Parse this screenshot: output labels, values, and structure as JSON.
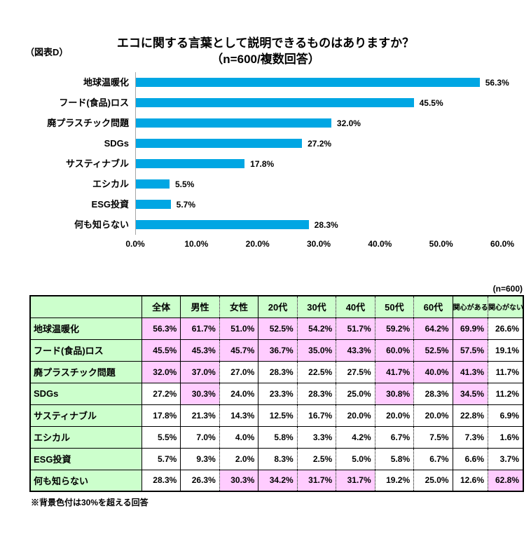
{
  "figure_label": "（図表D）",
  "chart_data": {
    "type": "bar",
    "orientation": "horizontal",
    "title": "エコに関する言葉として説明できるものはありますか？",
    "subtitle": "（n=600/複数回答）",
    "categories": [
      "地球温暖化",
      "フード(食品)ロス",
      "廃プラスチック問題",
      "SDGs",
      "サスティナブル",
      "エシカル",
      "ESG投資",
      "何も知らない"
    ],
    "values": [
      56.3,
      45.5,
      32.0,
      27.2,
      17.8,
      5.5,
      5.7,
      28.3
    ],
    "value_labels": [
      "56.3%",
      "45.5%",
      "32.0%",
      "27.2%",
      "17.8%",
      "5.5%",
      "5.7%",
      "28.3%"
    ],
    "xlabel": "",
    "ylabel": "",
    "xlim": [
      0,
      60
    ],
    "x_ticks": [
      "0.0%",
      "10.0%",
      "20.0%",
      "30.0%",
      "40.0%",
      "50.0%",
      "60.0%"
    ],
    "grid": false,
    "legend": false,
    "bar_color": "#00A6E3",
    "axis_line_color": "#A6A6A6"
  },
  "table": {
    "sample_size_label": "(n=600)",
    "columns": [
      "全体",
      "男性",
      "女性",
      "20代",
      "30代",
      "40代",
      "50代",
      "60代",
      "関心がある",
      "関心がない"
    ],
    "rows": [
      {
        "label": "地球温暖化",
        "values": [
          56.3,
          61.7,
          51.0,
          52.5,
          54.2,
          51.7,
          59.2,
          64.2,
          69.9,
          26.6
        ]
      },
      {
        "label": "フード(食品)ロス",
        "values": [
          45.5,
          45.3,
          45.7,
          36.7,
          35.0,
          43.3,
          60.0,
          52.5,
          57.5,
          19.1
        ]
      },
      {
        "label": "廃プラスチック問題",
        "values": [
          32.0,
          37.0,
          27.0,
          28.3,
          22.5,
          27.5,
          41.7,
          40.0,
          41.3,
          11.7
        ]
      },
      {
        "label": "SDGs",
        "values": [
          27.2,
          30.3,
          24.0,
          23.3,
          28.3,
          25.0,
          30.8,
          28.3,
          34.5,
          11.2
        ]
      },
      {
        "label": "サスティナブル",
        "values": [
          17.8,
          21.3,
          14.3,
          12.5,
          16.7,
          20.0,
          20.0,
          20.0,
          22.8,
          6.9
        ]
      },
      {
        "label": "エシカル",
        "values": [
          5.5,
          7.0,
          4.0,
          5.8,
          3.3,
          4.2,
          6.7,
          7.5,
          7.3,
          1.6
        ]
      },
      {
        "label": "ESG投資",
        "values": [
          5.7,
          9.3,
          2.0,
          8.3,
          2.5,
          5.0,
          5.8,
          6.7,
          6.6,
          3.7
        ]
      },
      {
        "label": "何も知らない",
        "values": [
          28.3,
          26.3,
          30.3,
          34.2,
          31.7,
          31.7,
          19.2,
          25.0,
          12.6,
          62.8
        ]
      }
    ],
    "highlight_threshold": 30,
    "highlight_color": "#FFCCFF",
    "header_color": "#CCFFCC",
    "footnote": "※背景色付は30%を超える回答"
  }
}
